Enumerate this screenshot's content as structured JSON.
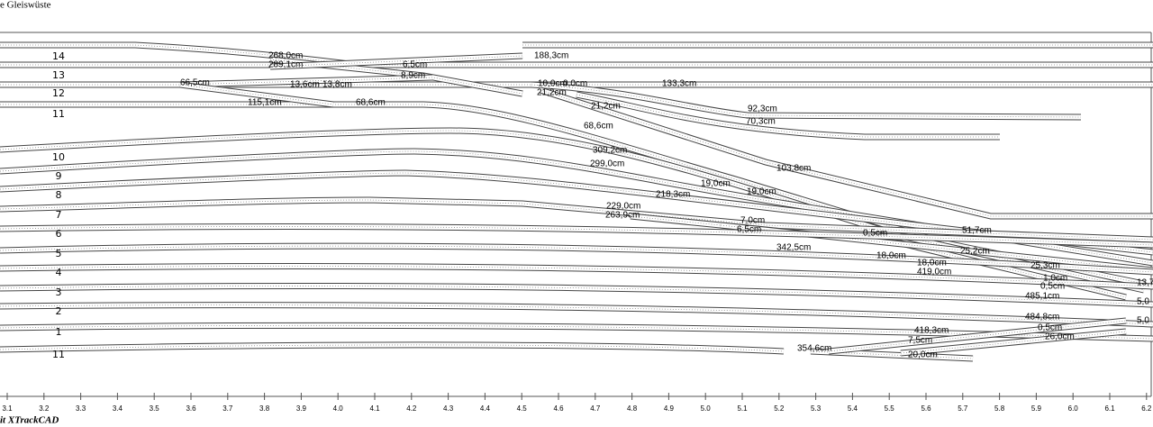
{
  "header": {
    "title": "e Gleiswüste"
  },
  "footer": {
    "text": "it XTrackCAD"
  },
  "track_numbers": [
    "14",
    "13",
    "12",
    "11",
    "10",
    "9",
    "8",
    "7",
    "6",
    "5",
    "4",
    "3",
    "2",
    "1",
    "11"
  ],
  "scale_labels": [
    "3.1",
    "3.2",
    "3.3",
    "3.4",
    "3.5",
    "3.6",
    "3.7",
    "3.8",
    "3.9",
    "4.0",
    "4.1",
    "4.2",
    "4.3",
    "4.4",
    "4.5",
    "4.6",
    "4.7",
    "4.8",
    "4.9",
    "5.0",
    "5.1",
    "5.2",
    "5.3",
    "5.4",
    "5.5",
    "5.6",
    "5.7",
    "5.8",
    "5.9",
    "6.0",
    "6.1",
    "6.2"
  ],
  "measurements": [
    "268,0cm",
    "289,1cm",
    "6,5cm",
    "8,9cm",
    "188,3cm",
    "13,6cm",
    "13,8cm",
    "66,5cm",
    "115,1cm",
    "68,6cm",
    "10,0cm",
    "0,0cm",
    "21,2cm",
    "133,3cm",
    "21,2cm",
    "92,3cm",
    "70,3cm",
    "68,6cm",
    "309,2cm",
    "299,0cm",
    "103,8cm",
    "19,0cm",
    "19,0cm",
    "218,3cm",
    "229,0cm",
    "263,9cm",
    "7,0cm",
    "6,5cm",
    "0,5cm",
    "51,7cm",
    "342,5cm",
    "18,0cm",
    "25,2cm",
    "18,0cm",
    "419,0cm",
    "25,3cm",
    "1,0cm",
    "0,5cm",
    "485,1cm",
    "13,7",
    "5,0",
    "484,8cm",
    "5,0",
    "418,3cm",
    "0,5cm",
    "7,5cm",
    "26,0cm",
    "354,6cm",
    "20,0cm"
  ]
}
